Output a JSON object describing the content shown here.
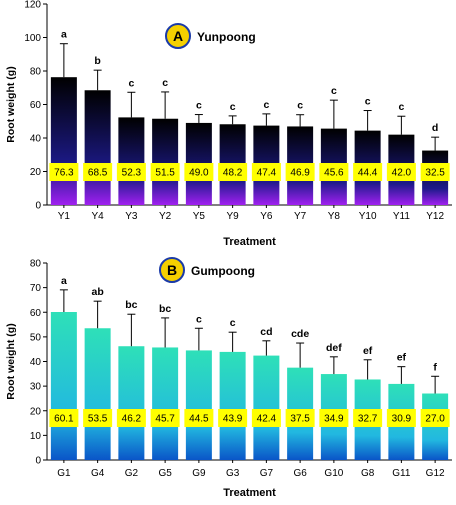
{
  "chart_data": [
    {
      "type": "bar",
      "panel_letter": "A",
      "title": "Yunpoong",
      "xlabel": "Treatment",
      "ylabel": "Root weight  (g)",
      "ylim": [
        0,
        120
      ],
      "yticks": [
        0,
        20,
        40,
        60,
        80,
        100,
        120
      ],
      "categories": [
        "Y1",
        "Y4",
        "Y3",
        "Y2",
        "Y5",
        "Y9",
        "Y6",
        "Y7",
        "Y8",
        "Y10",
        "Y11",
        "Y12"
      ],
      "values": [
        76.3,
        68.5,
        52.3,
        51.5,
        49.0,
        48.2,
        47.4,
        46.9,
        45.6,
        44.4,
        42.0,
        32.5
      ],
      "value_labels": [
        "76.3",
        "68.5",
        "52.3",
        "51.5",
        "49.0",
        "48.2",
        "47.4",
        "46.9",
        "45.6",
        "44.4",
        "42.0",
        "32.5"
      ],
      "errors": [
        20,
        12,
        15,
        16,
        5,
        5,
        7,
        7,
        17,
        12,
        11,
        8
      ],
      "significance": [
        "a",
        "b",
        "c",
        "c",
        "c",
        "c",
        "c",
        "c",
        "c",
        "c",
        "c",
        "d"
      ],
      "grid": false,
      "colors": {
        "top": "#000000",
        "mid": "#1d1a8a",
        "bottom": "#a020f0",
        "label_box": "#ffff00",
        "marker": "#f5d000",
        "marker_stroke": "#1a3aa8"
      }
    },
    {
      "type": "bar",
      "panel_letter": "B",
      "title": "Gumpoong",
      "xlabel": "Treatment",
      "ylabel": "Root weight  (g)",
      "ylim": [
        0,
        80
      ],
      "yticks": [
        0,
        10,
        20,
        30,
        40,
        50,
        60,
        70,
        80
      ],
      "categories": [
        "G1",
        "G4",
        "G2",
        "G5",
        "G9",
        "G3",
        "G7",
        "G6",
        "G10",
        "G8",
        "G11",
        "G12"
      ],
      "values": [
        60.1,
        53.5,
        46.2,
        45.7,
        44.5,
        43.9,
        42.4,
        37.5,
        34.9,
        32.7,
        30.9,
        27.0
      ],
      "value_labels": [
        "60.1",
        "53.5",
        "46.2",
        "45.7",
        "44.5",
        "43.9",
        "42.4",
        "37.5",
        "34.9",
        "32.7",
        "30.9",
        "27.0"
      ],
      "errors": [
        9,
        11,
        13,
        12,
        9,
        8,
        6,
        10,
        7,
        8,
        7,
        7
      ],
      "significance": [
        "a",
        "ab",
        "bc",
        "bc",
        "c",
        "c",
        "cd",
        "cde",
        "def",
        "ef",
        "ef",
        "f"
      ],
      "grid": false,
      "colors": {
        "top": "#2ee0b8",
        "mid": "#22b8e0",
        "bottom": "#0a55c8",
        "label_box": "#ffff00",
        "marker": "#f5d000",
        "marker_stroke": "#1a3aa8"
      }
    }
  ]
}
